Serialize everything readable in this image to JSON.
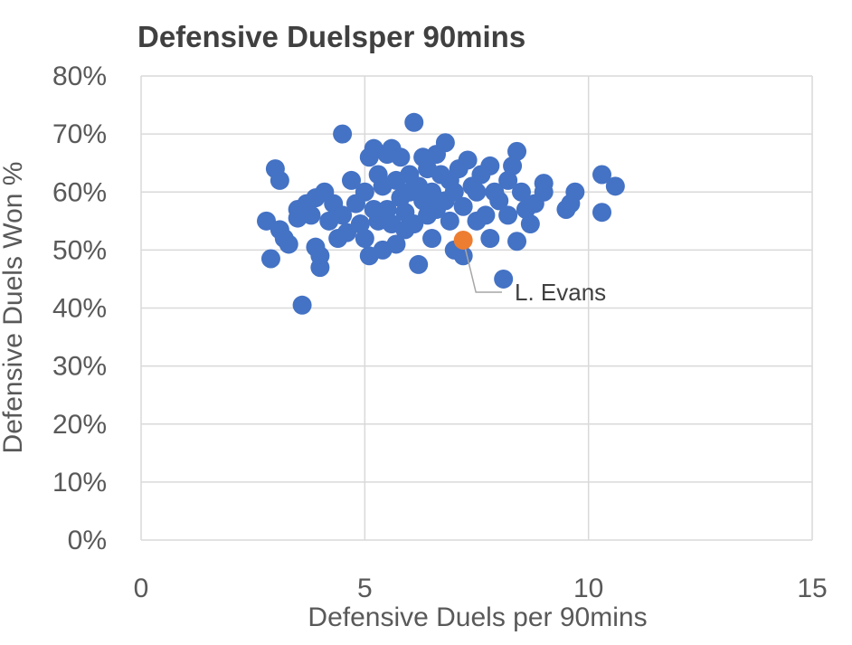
{
  "chart_data": {
    "type": "scatter",
    "title": "Defensive Duelsper 90mins",
    "xlabel": "Defensive Duels per 90mins",
    "ylabel": "Defensive Duels Won %",
    "xlim": [
      0,
      15
    ],
    "ylim": [
      0,
      0.8
    ],
    "x_ticks": [
      "0",
      "5",
      "10",
      "15"
    ],
    "y_ticks": [
      "0%",
      "10%",
      "20%",
      "30%",
      "40%",
      "50%",
      "60%",
      "70%",
      "80%"
    ],
    "grid": true,
    "legend": "none",
    "colors": {
      "series": "#4472C4",
      "highlight": "#ED7D31",
      "grid": "#D9D9D9",
      "axis_text": "#595959"
    },
    "series": [
      {
        "name": "",
        "points": [
          [
            2.8,
            0.55
          ],
          [
            2.9,
            0.485
          ],
          [
            3.0,
            0.64
          ],
          [
            3.1,
            0.62
          ],
          [
            3.1,
            0.535
          ],
          [
            3.2,
            0.52
          ],
          [
            3.3,
            0.51
          ],
          [
            3.5,
            0.57
          ],
          [
            3.5,
            0.555
          ],
          [
            3.6,
            0.405
          ],
          [
            3.7,
            0.58
          ],
          [
            3.8,
            0.56
          ],
          [
            3.9,
            0.59
          ],
          [
            3.9,
            0.505
          ],
          [
            4.0,
            0.47
          ],
          [
            4.0,
            0.49
          ],
          [
            4.1,
            0.6
          ],
          [
            4.2,
            0.55
          ],
          [
            4.3,
            0.58
          ],
          [
            4.4,
            0.52
          ],
          [
            4.5,
            0.7
          ],
          [
            4.5,
            0.56
          ],
          [
            4.6,
            0.53
          ],
          [
            4.7,
            0.62
          ],
          [
            4.8,
            0.58
          ],
          [
            4.9,
            0.545
          ],
          [
            5.0,
            0.6
          ],
          [
            5.0,
            0.52
          ],
          [
            5.1,
            0.66
          ],
          [
            5.1,
            0.49
          ],
          [
            5.2,
            0.57
          ],
          [
            5.2,
            0.675
          ],
          [
            5.3,
            0.63
          ],
          [
            5.3,
            0.55
          ],
          [
            5.4,
            0.61
          ],
          [
            5.4,
            0.5
          ],
          [
            5.5,
            0.665
          ],
          [
            5.5,
            0.57
          ],
          [
            5.6,
            0.675
          ],
          [
            5.6,
            0.545
          ],
          [
            5.7,
            0.62
          ],
          [
            5.7,
            0.51
          ],
          [
            5.8,
            0.59
          ],
          [
            5.8,
            0.66
          ],
          [
            5.9,
            0.565
          ],
          [
            5.9,
            0.535
          ],
          [
            6.0,
            0.63
          ],
          [
            6.0,
            0.6
          ],
          [
            6.1,
            0.545
          ],
          [
            6.1,
            0.72
          ],
          [
            6.2,
            0.61
          ],
          [
            6.2,
            0.475
          ],
          [
            6.3,
            0.66
          ],
          [
            6.3,
            0.585
          ],
          [
            6.4,
            0.56
          ],
          [
            6.4,
            0.64
          ],
          [
            6.5,
            0.6
          ],
          [
            6.5,
            0.52
          ],
          [
            6.6,
            0.665
          ],
          [
            6.6,
            0.57
          ],
          [
            6.7,
            0.63
          ],
          [
            6.8,
            0.585
          ],
          [
            6.8,
            0.685
          ],
          [
            6.9,
            0.55
          ],
          [
            6.9,
            0.62
          ],
          [
            7.0,
            0.6
          ],
          [
            7.0,
            0.5
          ],
          [
            7.1,
            0.64
          ],
          [
            7.2,
            0.575
          ],
          [
            7.2,
            0.49
          ],
          [
            7.3,
            0.655
          ],
          [
            7.4,
            0.61
          ],
          [
            7.5,
            0.55
          ],
          [
            7.5,
            0.6
          ],
          [
            7.6,
            0.63
          ],
          [
            7.7,
            0.56
          ],
          [
            7.8,
            0.645
          ],
          [
            7.8,
            0.52
          ],
          [
            7.9,
            0.6
          ],
          [
            8.0,
            0.585
          ],
          [
            8.1,
            0.45
          ],
          [
            8.2,
            0.62
          ],
          [
            8.2,
            0.56
          ],
          [
            8.3,
            0.645
          ],
          [
            8.4,
            0.67
          ],
          [
            8.4,
            0.515
          ],
          [
            8.5,
            0.6
          ],
          [
            8.6,
            0.57
          ],
          [
            8.7,
            0.545
          ],
          [
            8.8,
            0.58
          ],
          [
            9.0,
            0.615
          ],
          [
            9.0,
            0.6
          ],
          [
            9.5,
            0.57
          ],
          [
            9.6,
            0.58
          ],
          [
            9.7,
            0.6
          ],
          [
            10.3,
            0.63
          ],
          [
            10.3,
            0.565
          ],
          [
            10.6,
            0.61
          ]
        ]
      }
    ],
    "highlight": {
      "label": "L. Evans",
      "x": 7.2,
      "y": 0.517
    }
  }
}
